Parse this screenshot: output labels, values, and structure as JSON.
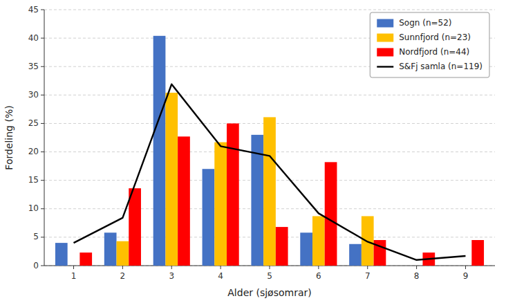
{
  "chart_data": {
    "type": "bar",
    "categories": [
      1,
      2,
      3,
      4,
      5,
      6,
      7,
      8,
      9
    ],
    "series": [
      {
        "name": "Sogn (n=52)",
        "type": "bar",
        "color": "#4472C4",
        "values": [
          4.0,
          5.8,
          40.4,
          17.0,
          23.0,
          5.8,
          3.8,
          0.0,
          0.0
        ]
      },
      {
        "name": "Sunnfjord (n=23)",
        "type": "bar",
        "color": "#FFC000",
        "values": [
          0.0,
          4.3,
          30.4,
          21.7,
          26.1,
          8.7,
          8.7,
          0.0,
          0.0
        ]
      },
      {
        "name": "Nordfjord (n=44)",
        "type": "bar",
        "color": "#FF0000",
        "values": [
          2.3,
          13.6,
          22.7,
          25.0,
          6.8,
          18.2,
          4.5,
          2.3,
          4.5
        ]
      },
      {
        "name": "S&Fj samla (n=119)",
        "type": "line",
        "color": "black",
        "values": [
          4.0,
          8.4,
          31.9,
          21.0,
          19.3,
          9.2,
          4.2,
          1.0,
          1.7
        ]
      }
    ],
    "xlabel": "Alder (sjøsomrar)",
    "ylabel": "Fordeling (%)",
    "ylim": [
      0,
      45
    ],
    "yticks": [
      0,
      5,
      10,
      15,
      20,
      25,
      30,
      35,
      40,
      45
    ],
    "grid": true,
    "legend": "upper right"
  }
}
